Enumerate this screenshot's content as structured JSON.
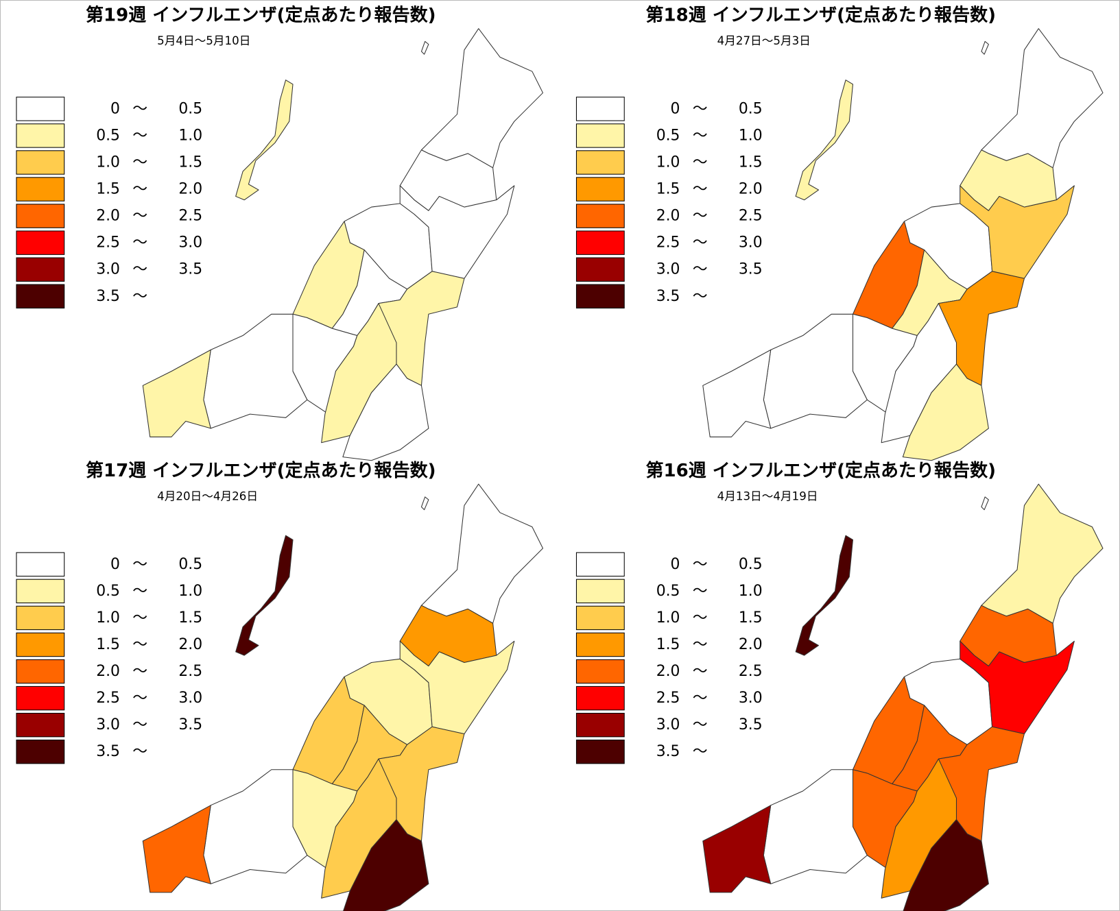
{
  "panels": [
    {
      "title": "第19週 インフルエンザ(定点あたり報告数)",
      "subtitle": "5月4日～5月10日",
      "region_colors": [
        "#fff5a8",
        "#ffffff",
        "#ffffff",
        "#ffffff",
        "#fff5a8",
        "#ffffff",
        "#ffffff",
        "#ffffff",
        "#fff5a8",
        "#fff5a8",
        "#ffffff",
        "#fff5a8",
        "#ffffff"
      ]
    },
    {
      "title": "第18週 インフルエンザ(定点あたり報告数)",
      "subtitle": "4月27日～5月3日",
      "region_colors": [
        "#fff5a8",
        "#ffffff",
        "#fff5a8",
        "#ffffff",
        "#ff6600",
        "#ffcc4d",
        "#fff5a8",
        "#ffffff",
        "#ffffff",
        "#ff9900",
        "#ffffff",
        "#ffffff",
        "#fff5a8"
      ]
    },
    {
      "title": "第17週 インフルエンザ(定点あたり報告数)",
      "subtitle": "4月20日～4月26日",
      "region_colors": [
        "#4d0000",
        "#ffffff",
        "#ff9900",
        "#fff5a8",
        "#ffcc4d",
        "#fff5a8",
        "#ffcc4d",
        "#fff5a8",
        "#ffcc4d",
        "#ffcc4d",
        "#ffffff",
        "#ff6600",
        "#4d0000"
      ]
    },
    {
      "title": "第16週 インフルエンザ(定点あたり報告数)",
      "subtitle": "4月13日～4月19日",
      "region_colors": [
        "#4d0000",
        "#fff5a8",
        "#ff6600",
        "#ffffff",
        "#ff6600",
        "#ff0000",
        "#ff6600",
        "#ff6600",
        "#ff9900",
        "#ff6600",
        "#ffffff",
        "#990000",
        "#4d0000"
      ]
    }
  ],
  "legend": {
    "separator": "〜",
    "items": [
      {
        "color": "#ffffff",
        "from": "0",
        "to": "0.5"
      },
      {
        "color": "#fff5a8",
        "from": "0.5",
        "to": "1.0"
      },
      {
        "color": "#ffcc4d",
        "from": "1.0",
        "to": "1.5"
      },
      {
        "color": "#ff9900",
        "from": "1.5",
        "to": "2.0"
      },
      {
        "color": "#ff6600",
        "from": "2.0",
        "to": "2.5"
      },
      {
        "color": "#ff0000",
        "from": "2.5",
        "to": "3.0"
      },
      {
        "color": "#990000",
        "from": "3.0",
        "to": "3.5"
      },
      {
        "color": "#4d0000",
        "from": "3.5"
      }
    ]
  }
}
